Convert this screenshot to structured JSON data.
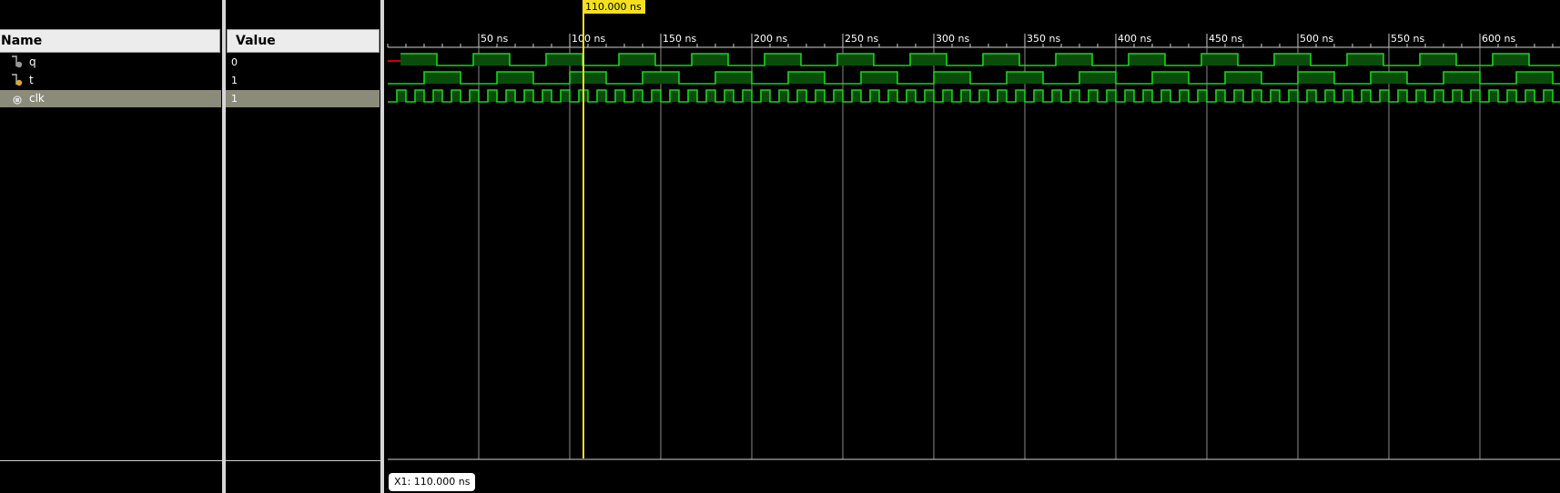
{
  "columns": {
    "name": "Name",
    "value": "Value"
  },
  "signals": [
    {
      "name": "q",
      "value": "0",
      "icon": "output-signal-icon",
      "selected": false
    },
    {
      "name": "t",
      "value": "1",
      "icon": "input-signal-icon",
      "selected": false
    },
    {
      "name": "clk",
      "value": "1",
      "icon": "clock-signal-icon",
      "selected": true
    }
  ],
  "timeline": {
    "unit": "ns",
    "tick_labels": [
      "50 ns",
      "100 ns",
      "150 ns",
      "200 ns",
      "250 ns",
      "300 ns",
      "350 ns",
      "400 ns",
      "450 ns",
      "500 ns",
      "550 ns",
      "600 ns"
    ],
    "cursor_label": "110.000 ns"
  },
  "cursor_readout": "X1: 110.000 ns",
  "colors": {
    "wave": "#19d31b",
    "wave_fill": "#0a4d0a",
    "cursor": "#f5e020",
    "grid": "#8a8a8a",
    "unknown": "#cc0000"
  }
}
